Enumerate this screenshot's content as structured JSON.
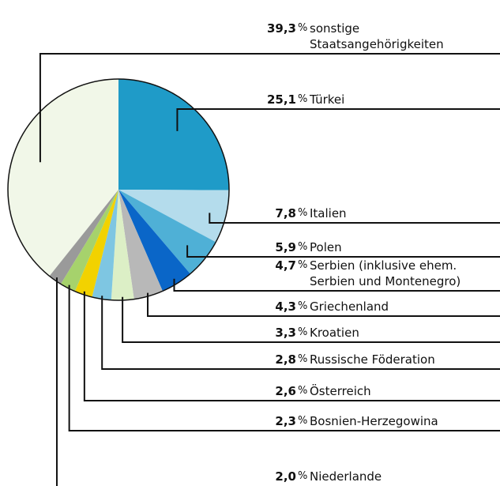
{
  "chart_data": {
    "type": "pie",
    "categories": [
      "sonstige\nStaatsangehörigkeiten",
      "Türkei",
      "Italien",
      "Polen",
      "Serbien (inklusive ehem.\nSerbien und Montenegro)",
      "Griechenland",
      "Kroatien",
      "Russische Föderation",
      "Österreich",
      "Bosnien-Herzegowina",
      "Niederlande"
    ],
    "values": [
      39.3,
      25.1,
      7.8,
      5.9,
      4.7,
      4.3,
      3.3,
      2.8,
      2.6,
      2.3,
      2.0
    ],
    "value_labels": [
      "39,3",
      "25,1",
      "7,8",
      "5,9",
      "4,7",
      "4,3",
      "3,3",
      "2,8",
      "2,6",
      "2,3",
      "2,0"
    ],
    "unit_label": "%",
    "colors": [
      "#f1f7e8",
      "#1f9bc8",
      "#b4dcec",
      "#4fb0d6",
      "#0a66c8",
      "#b8b8b8",
      "#dcefc6",
      "#7ec6e2",
      "#f2d200",
      "#a6d26c",
      "#9a9a9a"
    ]
  }
}
